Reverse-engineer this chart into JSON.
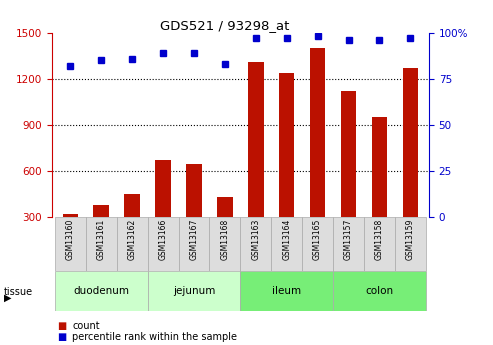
{
  "title": "GDS521 / 93298_at",
  "samples": [
    "GSM13160",
    "GSM13161",
    "GSM13162",
    "GSM13166",
    "GSM13167",
    "GSM13168",
    "GSM13163",
    "GSM13164",
    "GSM13165",
    "GSM13157",
    "GSM13158",
    "GSM13159"
  ],
  "counts": [
    320,
    380,
    450,
    670,
    650,
    430,
    1310,
    1240,
    1400,
    1120,
    950,
    1270
  ],
  "percentiles": [
    82,
    85,
    86,
    89,
    89,
    83,
    97,
    97,
    98,
    96,
    96,
    97
  ],
  "tissues": [
    {
      "name": "duodenum",
      "start": 0,
      "end": 3,
      "color": "#ccffcc"
    },
    {
      "name": "jejunum",
      "start": 3,
      "end": 6,
      "color": "#ccffcc"
    },
    {
      "name": "ileum",
      "start": 6,
      "end": 9,
      "color": "#77ee77"
    },
    {
      "name": "colon",
      "start": 9,
      "end": 12,
      "color": "#77ee77"
    }
  ],
  "bar_color": "#bb1100",
  "dot_color": "#0000cc",
  "left_ylim": [
    300,
    1500
  ],
  "left_yticks": [
    300,
    600,
    900,
    1200,
    1500
  ],
  "right_ylim": [
    0,
    100
  ],
  "right_yticks": [
    0,
    25,
    50,
    75,
    100
  ],
  "right_yticklabels": [
    "0",
    "25",
    "50",
    "75",
    "100%"
  ],
  "left_tick_color": "#cc0000",
  "right_tick_color": "#0000cc",
  "grid_dotted_at": [
    600,
    900,
    1200
  ]
}
